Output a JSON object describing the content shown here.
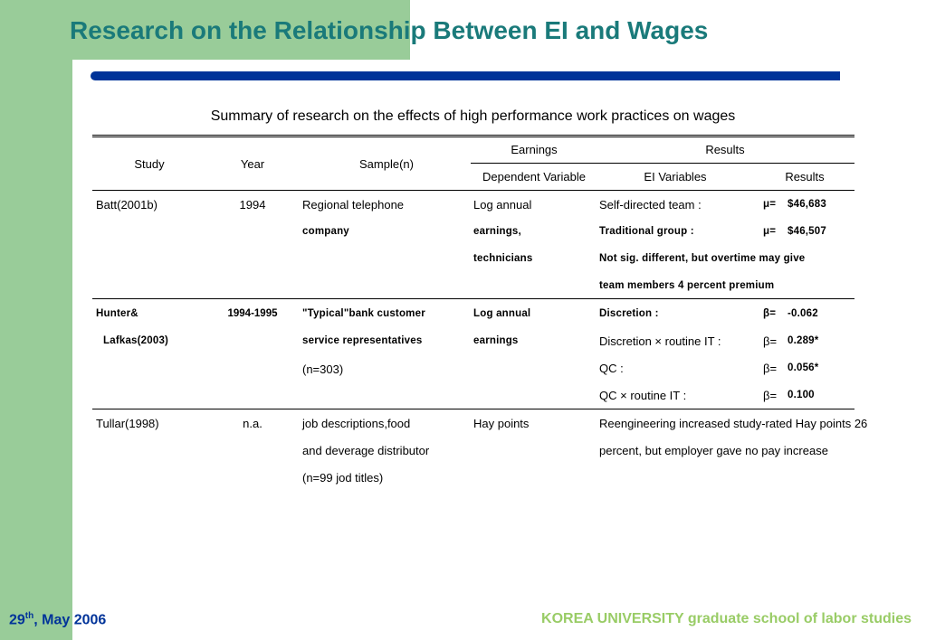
{
  "title": "Research on the Relationship Between EI and Wages",
  "caption": "Summary of research on the effects of high performance work practices on wages",
  "table": {
    "headers": {
      "study": "Study",
      "year": "Year",
      "sample": "Sample(n)",
      "earnings": "Earnings",
      "results_group": "Results",
      "dependent_variable": "Dependent Variable",
      "ei_variables": "EI Variables",
      "results": "Results"
    },
    "rows": [
      {
        "study": [
          "Batt(2001b)"
        ],
        "year": "1994",
        "sample": [
          "Regional telephone",
          "company"
        ],
        "dependent": [
          "Log annual",
          "earnings,",
          "technicians"
        ],
        "ei": [
          "Self-directed team :",
          "Traditional group :",
          "Not sig. different, but overtime may give",
          "team members 4 percent premium"
        ],
        "sym": [
          "μ=",
          "μ=",
          "",
          ""
        ],
        "val": [
          "$46,683",
          "$46,507",
          "",
          ""
        ]
      },
      {
        "study": [
          "Hunter&",
          "Lafkas(2003)"
        ],
        "year": "1994-1995",
        "sample": [
          "\"Typical\"bank customer",
          "service representatives",
          "(n=303)"
        ],
        "dependent": [
          "Log annual",
          "earnings"
        ],
        "ei": [
          "Discretion :",
          "Discretion × routine IT :",
          "QC :",
          "QC  × routine IT :"
        ],
        "sym": [
          "β=",
          "β=",
          "β=",
          "β="
        ],
        "val": [
          "-0.062",
          "0.289*",
          "0.056*",
          "0.100"
        ]
      },
      {
        "study": [
          "Tullar(1998)"
        ],
        "year": "n.a.",
        "sample": [
          "job descriptions,food",
          "and deverage distributor",
          "(n=99 jod titles)"
        ],
        "dependent": [
          "Hay points"
        ],
        "ei": [
          "Reengineering increased study-rated Hay points 26",
          "percent, but employer gave no pay increase"
        ]
      }
    ]
  },
  "footer": {
    "date_day": "29",
    "date_sup": "th",
    "date_rest": ", May 2006",
    "org": "KOREA UNIVERSITY graduate school of labor studies"
  },
  "colors": {
    "title": "#1a7a7a",
    "green_background": "#99cc99",
    "blue_bar": "#003399",
    "footer_date": "#003399",
    "footer_org": "#99cc66"
  }
}
